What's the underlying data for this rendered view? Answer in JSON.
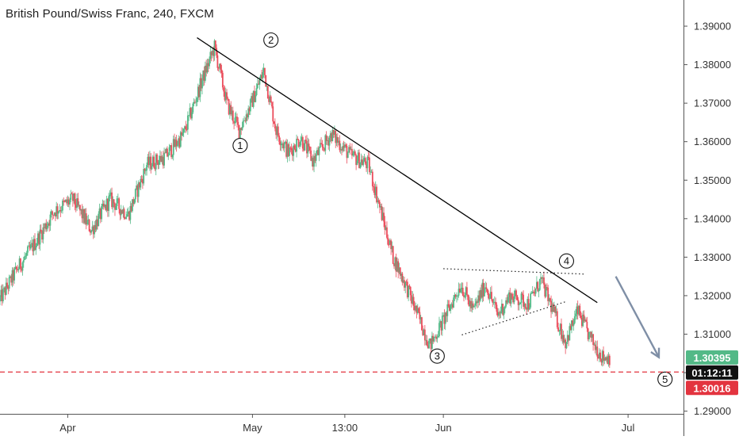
{
  "title": "British Pound/Swiss Franc, 240, FXCM",
  "colors": {
    "up": "#53b987",
    "down": "#eb4d5c",
    "trendline": "#000000",
    "wave_arrow": "#7f8fa6",
    "support_line": "#e3343f",
    "price_tag_current": "#53b987",
    "price_tag_support": "#e3343f",
    "countdown_tag": "#111111"
  },
  "chart_data": {
    "type": "candlestick",
    "title": "British Pound/Swiss Franc, 240, FXCM",
    "xlabel": "",
    "ylabel": "",
    "ylim": [
      1.2893,
      1.3968
    ],
    "x_range": [
      "2019-03-21",
      "2019-07-10"
    ],
    "x_ticks": [
      {
        "label": "Apr",
        "date": "2019-04-01"
      },
      {
        "label": "May",
        "date": "2019-05-01"
      },
      {
        "label": "13:00",
        "date": "2019-05-16"
      },
      {
        "label": "Jun",
        "date": "2019-06-01"
      },
      {
        "label": "Jul",
        "date": "2019-07-01"
      }
    ],
    "y_ticks": [
      "1.29000",
      "1.30000",
      "1.31000",
      "1.32000",
      "1.33000",
      "1.34000",
      "1.35000",
      "1.36000",
      "1.37000",
      "1.38000",
      "1.39000"
    ],
    "price_path": [
      [
        "2019-03-21",
        1.3185
      ],
      [
        "2019-03-24",
        1.327
      ],
      [
        "2019-03-27",
        1.334
      ],
      [
        "2019-03-30",
        1.342
      ],
      [
        "2019-04-02",
        1.345
      ],
      [
        "2019-04-05",
        1.337
      ],
      [
        "2019-04-08",
        1.345
      ],
      [
        "2019-04-11",
        1.341
      ],
      [
        "2019-04-14",
        1.354
      ],
      [
        "2019-04-17",
        1.356
      ],
      [
        "2019-04-20",
        1.362
      ],
      [
        "2019-04-23",
        1.376
      ],
      [
        "2019-04-25",
        1.3845
      ],
      [
        "2019-04-27",
        1.37
      ],
      [
        "2019-04-29",
        1.363
      ],
      [
        "2019-05-01",
        1.37
      ],
      [
        "2019-05-03",
        1.3785
      ],
      [
        "2019-05-05",
        1.363
      ],
      [
        "2019-05-07",
        1.357
      ],
      [
        "2019-05-09",
        1.361
      ],
      [
        "2019-05-11",
        1.355
      ],
      [
        "2019-05-14",
        1.362
      ],
      [
        "2019-05-17",
        1.3565
      ],
      [
        "2019-05-20",
        1.354
      ],
      [
        "2019-05-22",
        1.342
      ],
      [
        "2019-05-24",
        1.33
      ],
      [
        "2019-05-26",
        1.323
      ],
      [
        "2019-05-28",
        1.315
      ],
      [
        "2019-05-30",
        1.307
      ],
      [
        "2019-06-01",
        1.313
      ],
      [
        "2019-06-04",
        1.323
      ],
      [
        "2019-06-06",
        1.316
      ],
      [
        "2019-06-08",
        1.323
      ],
      [
        "2019-06-10",
        1.315
      ],
      [
        "2019-06-12",
        1.32
      ],
      [
        "2019-06-15",
        1.318
      ],
      [
        "2019-06-17",
        1.324
      ],
      [
        "2019-06-19",
        1.316
      ],
      [
        "2019-06-21",
        1.308
      ],
      [
        "2019-06-23",
        1.316
      ],
      [
        "2019-06-25",
        1.309
      ],
      [
        "2019-06-27",
        1.304
      ],
      [
        "2019-06-28",
        1.304
      ]
    ],
    "annotations": {
      "wave_labels": [
        {
          "label": "1",
          "date": "2019-04-29",
          "price": 1.359
        },
        {
          "label": "2",
          "date": "2019-05-04",
          "price": 1.3864
        },
        {
          "label": "3",
          "date": "2019-05-31",
          "price": 1.3043
        },
        {
          "label": "4",
          "date": "2019-06-21",
          "price": 1.329
        },
        {
          "label": "5",
          "date": "2019-07-07",
          "price": 1.2983
        }
      ],
      "trendline": [
        {
          "date": "2019-04-22",
          "price": 1.387
        },
        {
          "date": "2019-06-26",
          "price": 1.3182
        }
      ],
      "triangle_upper": [
        {
          "date": "2019-06-01",
          "price": 1.327
        },
        {
          "date": "2019-06-24",
          "price": 1.3256
        }
      ],
      "triangle_lower": [
        {
          "date": "2019-06-04",
          "price": 1.3098
        },
        {
          "date": "2019-06-21",
          "price": 1.3185
        }
      ],
      "projection_arrow": [
        {
          "date": "2019-06-29",
          "price": 1.325
        },
        {
          "date": "2019-07-06",
          "price": 1.304
        }
      ],
      "support_level": 1.30016
    },
    "price_tags": {
      "current": "1.30395",
      "countdown": "01:12:11",
      "support": "1.30016"
    },
    "grid": false,
    "legend": "none"
  }
}
